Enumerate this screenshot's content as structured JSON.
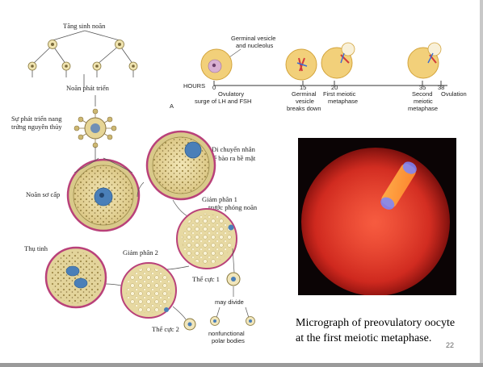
{
  "diagram": {
    "labels": {
      "tang_sinh_noan": "Tăng sinh noãn",
      "noan_phat_trien": "Noãn phát triển",
      "su_phat_trien_1": "Sự phát triển nang",
      "su_phat_trien_2": "trứng nguyên thủy",
      "di_chuyen_1": "Di chuyển nhân",
      "di_chuyen_2": "tế bào ra bề mặt",
      "noan_so_cap": "Noãn sơ cấp",
      "giam_phan_1_a": "Giảm phân 1",
      "giam_phan_1_b": "trước phóng noãn",
      "thu_tinh": "Thụ tinh",
      "giam_phan_2": "Giảm phân 2",
      "the_cuc_1": "Thể cực 1",
      "may_divide": "may divide",
      "the_cuc_2": "Thể cực 2",
      "nonfunctional_1": "nonfunctional",
      "nonfunctional_2": "polar bodies"
    }
  },
  "timeline": {
    "panel_letter": "A",
    "germinal_1": "Germinal vesicle",
    "germinal_2": "and nucleolus",
    "hours_label": "HOURS",
    "ticks": [
      {
        "hour": "0",
        "l1": "Ovulatory",
        "l2": "surge of LH and FSH",
        "l3": ""
      },
      {
        "hour": "15",
        "l1": "Germinal",
        "l2": "vesicle",
        "l3": "breaks down"
      },
      {
        "hour": "20",
        "l1": "First meiotic",
        "l2": "metaphase",
        "l3": ""
      },
      {
        "hour": "35",
        "l1": "Second",
        "l2": "meiotic",
        "l3": "metaphase"
      },
      {
        "hour": "38",
        "l1": "Ovulation",
        "l2": "",
        "l3": ""
      }
    ]
  },
  "caption": {
    "line1": "Micrograph of preovulatory oocyte",
    "line2": "at the first meiotic metaphase."
  },
  "page_number": "22",
  "colors": {
    "cytoplasm": "#e8d9a0",
    "membrane": "#b9417a",
    "nucleus": "#4a7fb8",
    "micro_red": "#d8261c"
  }
}
